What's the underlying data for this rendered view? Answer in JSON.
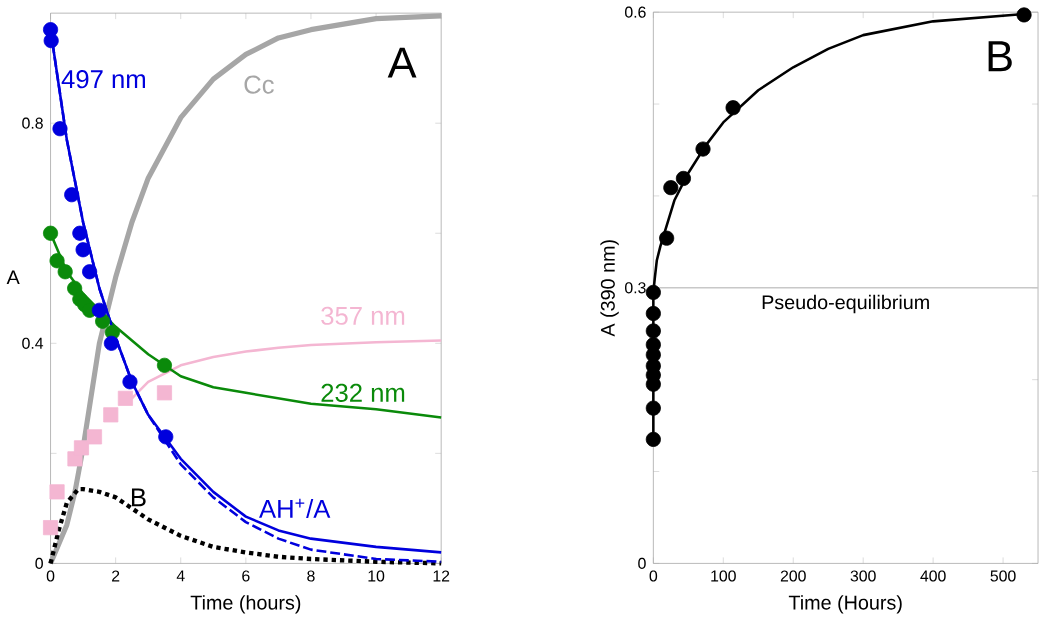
{
  "chart_data": [
    {
      "type": "line",
      "xlabel": "Time (hours)",
      "ylabel": "A",
      "xlim": [
        0,
        12
      ],
      "ylim": [
        0,
        1.0
      ],
      "xticks": [
        0,
        2,
        4,
        6,
        8,
        10,
        12
      ],
      "yticks": [
        0,
        {
          "value": 0.2,
          "label": null
        },
        0.4,
        {
          "value": 0.6,
          "label": null
        },
        0.8
      ],
      "annotations": [
        "A"
      ],
      "series": [
        {
          "name": "Cc",
          "color": "#a6a6a6",
          "line_style": "solid",
          "x": [
            0,
            0.5,
            0.75,
            1,
            1.5,
            2,
            2.5,
            3,
            4,
            5,
            6,
            7,
            8,
            10,
            12
          ],
          "values": [
            0,
            0.07,
            0.13,
            0.21,
            0.4,
            0.52,
            0.62,
            0.7,
            0.81,
            0.88,
            0.925,
            0.955,
            0.97,
            0.99,
            0.995
          ]
        },
        {
          "name": "357 nm",
          "color": "#f4b6d2",
          "line_style": "solid",
          "x": [
            2.5,
            3,
            4,
            5,
            6,
            7,
            8,
            10,
            12
          ],
          "values": [
            0.3,
            0.33,
            0.36,
            0.375,
            0.385,
            0.392,
            0.397,
            0.402,
            0.405
          ]
        },
        {
          "type": "scatter",
          "color": "#f4b6d2",
          "marker": "square",
          "x": [
            0,
            0.2,
            0.75,
            0.95,
            1.35,
            1.85,
            2.3,
            3.5
          ],
          "values": [
            0.065,
            0.13,
            0.19,
            0.21,
            0.23,
            0.27,
            0.3,
            0.31
          ]
        },
        {
          "name": "232 nm",
          "color": "#0a8a0a",
          "line_style": "solid",
          "x": [
            0,
            0.5,
            1,
            2,
            3,
            4,
            5,
            6,
            8,
            10,
            12
          ],
          "values": [
            0.6,
            0.53,
            0.49,
            0.43,
            0.38,
            0.34,
            0.32,
            0.31,
            0.29,
            0.28,
            0.265
          ]
        },
        {
          "type": "scatter",
          "color": "#0a8a0a",
          "marker": "circle",
          "x": [
            0,
            0.2,
            0.45,
            0.74,
            0.9,
            1.05,
            1.2,
            1.6,
            1.9,
            3.5
          ],
          "values": [
            0.6,
            0.55,
            0.53,
            0.5,
            0.48,
            0.47,
            0.46,
            0.44,
            0.42,
            0.36
          ]
        },
        {
          "name": "B",
          "color": "#000000",
          "line_style": "dotted",
          "x": [
            0,
            0.25,
            0.5,
            0.85,
            1,
            1.5,
            2,
            3,
            4,
            5,
            6,
            7,
            8,
            10,
            12
          ],
          "values": [
            0,
            0.06,
            0.11,
            0.135,
            0.135,
            0.13,
            0.12,
            0.08,
            0.05,
            0.03,
            0.02,
            0.012,
            0.008,
            0.003,
            0
          ]
        },
        {
          "name": "497 nm",
          "color": "#0000dd",
          "line_style": "solid",
          "x": [
            0,
            0.5,
            1,
            1.5,
            2,
            2.5,
            3,
            4,
            5,
            6,
            7,
            8,
            10,
            12
          ],
          "values": [
            0.97,
            0.77,
            0.62,
            0.5,
            0.41,
            0.33,
            0.27,
            0.19,
            0.13,
            0.085,
            0.06,
            0.045,
            0.03,
            0.02
          ]
        },
        {
          "name": "AH$^{+}$/A",
          "color": "#0000dd",
          "line_style": "dashed",
          "x": [
            0,
            0.5,
            1,
            1.5,
            2,
            2.5,
            3,
            4,
            5,
            6,
            7,
            8,
            10,
            12
          ],
          "values": [
            0.97,
            0.77,
            0.62,
            0.5,
            0.41,
            0.33,
            0.27,
            0.18,
            0.12,
            0.075,
            0.045,
            0.025,
            0.008,
            0.003
          ]
        },
        {
          "type": "scatter",
          "color": "#0000dd",
          "marker": "circle",
          "x": [
            0,
            0.02,
            0.29,
            0.65,
            0.9,
            1.0,
            1.2,
            1.5,
            1.87,
            2.44,
            3.54
          ],
          "values": [
            0.97,
            0.95,
            0.79,
            0.67,
            0.6,
            0.57,
            0.53,
            0.46,
            0.4,
            0.33,
            0.23
          ]
        }
      ]
    },
    {
      "type": "scatter",
      "xlabel": "Time (Hours)",
      "ylabel": "A (390 nm)",
      "xlim": [
        0,
        550
      ],
      "ylim": [
        0,
        0.6
      ],
      "xticks": [
        0,
        100,
        200,
        300,
        400,
        500
      ],
      "yticks": [
        0,
        {
          "value": 0.1,
          "label": null
        },
        {
          "value": 0.2,
          "label": null
        },
        0.3,
        {
          "value": 0.4,
          "label": null
        },
        {
          "value": 0.5,
          "label": null
        },
        0.6
      ],
      "annotations": [
        "B"
      ],
      "ref_lines": [
        {
          "axis": "y",
          "value": 0.3,
          "label": "Pseudo-equilibrium",
          "color": "#c8c8c8"
        }
      ],
      "series": [
        {
          "type": "line",
          "color": "#000000",
          "line_style": "solid",
          "x": [
            0,
            0,
            2,
            5,
            10,
            20,
            30,
            50,
            75,
            100,
            150,
            200,
            250,
            300,
            400,
            530
          ],
          "values": [
            0.135,
            0.295,
            0.31,
            0.33,
            0.345,
            0.37,
            0.395,
            0.425,
            0.455,
            0.48,
            0.515,
            0.54,
            0.56,
            0.575,
            0.59,
            0.598
          ]
        },
        {
          "color": "#000000",
          "marker": "circle",
          "x": [
            0,
            0,
            0,
            0,
            0,
            0,
            0,
            0,
            0,
            0,
            19,
            25,
            43,
            71,
            114,
            530
          ],
          "values": [
            0.135,
            0.169,
            0.195,
            0.205,
            0.215,
            0.227,
            0.238,
            0.253,
            0.272,
            0.295,
            0.354,
            0.409,
            0.419,
            0.451,
            0.496,
            0.597
          ]
        }
      ]
    }
  ]
}
